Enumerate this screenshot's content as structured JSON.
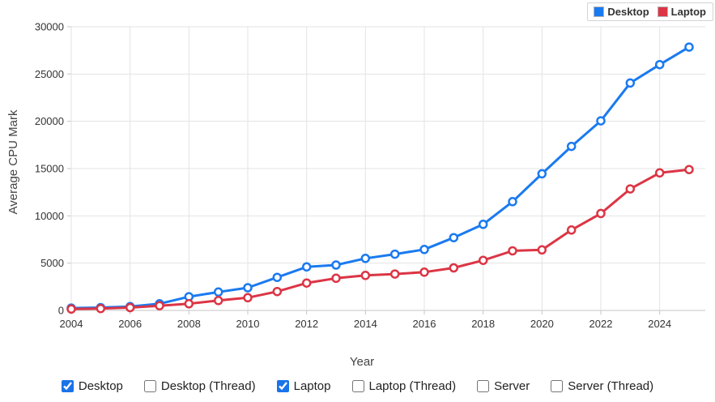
{
  "legend": {
    "items": [
      {
        "label": "Desktop",
        "color": "#1a7af0"
      },
      {
        "label": "Laptop",
        "color": "#dc3545"
      }
    ]
  },
  "chart_data": {
    "type": "line",
    "title": "",
    "xlabel": "Year",
    "ylabel": "Average CPU Mark",
    "x": [
      2004,
      2005,
      2006,
      2007,
      2008,
      2009,
      2010,
      2011,
      2012,
      2013,
      2014,
      2015,
      2016,
      2017,
      2018,
      2019,
      2020,
      2021,
      2022,
      2023,
      2024,
      2025
    ],
    "series": [
      {
        "name": "Desktop",
        "color": "#1a7af0",
        "values": [
          250,
          300,
          400,
          700,
          1450,
          1950,
          2400,
          3500,
          4600,
          4800,
          5500,
          5950,
          6450,
          7700,
          9100,
          11500,
          14450,
          17350,
          20050,
          24050,
          26000,
          27850
        ]
      },
      {
        "name": "Laptop",
        "color": "#dc3545",
        "values": [
          150,
          200,
          300,
          500,
          700,
          1050,
          1350,
          2000,
          2900,
          3400,
          3700,
          3850,
          4050,
          4500,
          5300,
          6300,
          6400,
          8500,
          10250,
          12850,
          14550,
          14900
        ]
      }
    ],
    "ylim": [
      0,
      30000
    ],
    "xlim": [
      2004,
      2025.55
    ],
    "y_ticks": [
      0,
      5000,
      10000,
      15000,
      20000,
      25000,
      30000
    ],
    "x_ticks": [
      2004,
      2006,
      2008,
      2010,
      2012,
      2014,
      2016,
      2018,
      2020,
      2022,
      2024
    ],
    "grid": true,
    "legend_position": "top-right"
  },
  "filters": {
    "items": [
      {
        "label": "Desktop",
        "checked": true
      },
      {
        "label": "Desktop (Thread)",
        "checked": false
      },
      {
        "label": "Laptop",
        "checked": true
      },
      {
        "label": "Laptop (Thread)",
        "checked": false
      },
      {
        "label": "Server",
        "checked": false
      },
      {
        "label": "Server (Thread)",
        "checked": false
      }
    ]
  },
  "colors": {
    "desktop_series": "#1a7af0",
    "laptop_series": "#dc3545",
    "grid": "#e3e3e3",
    "axis": "#c4c4c4",
    "tick_text": "#333333",
    "checkbox_accent": "#1a73e8"
  }
}
